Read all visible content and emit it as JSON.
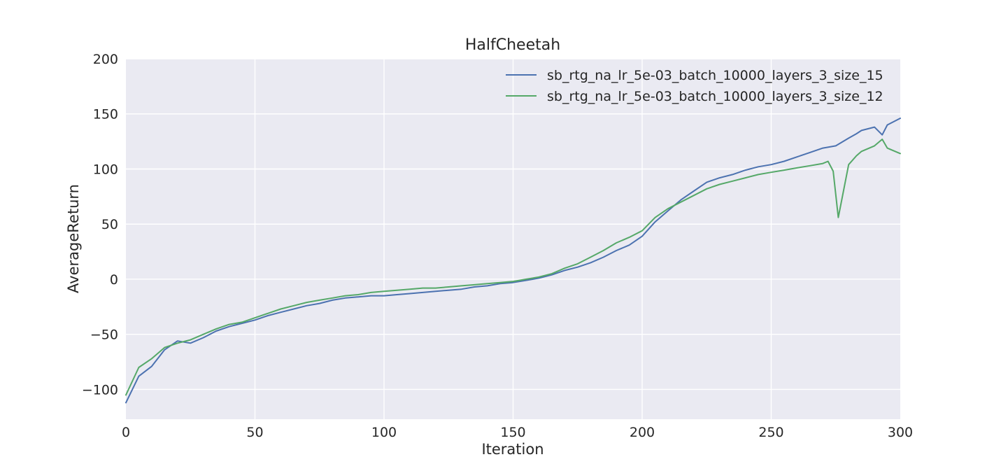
{
  "chart_data": {
    "type": "line",
    "title": "HalfCheetah",
    "xlabel": "Iteration",
    "ylabel": "AverageReturn",
    "xlim": [
      0,
      300
    ],
    "ylim": [
      -127,
      200
    ],
    "xticks": [
      0,
      50,
      100,
      150,
      200,
      250,
      300
    ],
    "yticks": [
      -100,
      -50,
      0,
      50,
      100,
      150,
      200
    ],
    "ytick_labels": [
      "−100",
      "−50",
      "0",
      "50",
      "100",
      "150",
      "200"
    ],
    "grid": true,
    "style": "seaborn",
    "legend_position": "top-right",
    "series": [
      {
        "name": "sb_rtg_na_lr_5e-03_batch_10000_layers_3_size_15",
        "color": "#4c72b0",
        "x": [
          0,
          5,
          10,
          15,
          20,
          25,
          30,
          35,
          40,
          45,
          50,
          55,
          60,
          65,
          70,
          75,
          80,
          85,
          90,
          95,
          100,
          105,
          110,
          115,
          120,
          125,
          130,
          135,
          140,
          145,
          150,
          155,
          160,
          165,
          170,
          175,
          180,
          185,
          190,
          195,
          200,
          205,
          210,
          215,
          220,
          225,
          230,
          235,
          240,
          245,
          250,
          255,
          260,
          265,
          270,
          275,
          280,
          283,
          285,
          290,
          293,
          295,
          300
        ],
        "y": [
          -112,
          -88,
          -79,
          -64,
          -56,
          -58,
          -53,
          -47,
          -43,
          -40,
          -37,
          -33,
          -30,
          -27,
          -24,
          -22,
          -19,
          -17,
          -16,
          -15,
          -15,
          -14,
          -13,
          -12,
          -11,
          -10,
          -9,
          -7,
          -6,
          -4,
          -3,
          -1,
          1,
          4,
          8,
          11,
          15,
          20,
          26,
          31,
          39,
          52,
          62,
          72,
          80,
          88,
          92,
          95,
          99,
          102,
          104,
          107,
          111,
          115,
          119,
          121,
          128,
          132,
          135,
          138,
          131,
          140,
          146
        ]
      },
      {
        "name": "sb_rtg_na_lr_5e-03_batch_10000_layers_3_size_12",
        "color": "#55a868",
        "x": [
          0,
          5,
          10,
          15,
          20,
          25,
          30,
          35,
          40,
          45,
          50,
          55,
          60,
          65,
          70,
          75,
          80,
          85,
          90,
          95,
          100,
          105,
          110,
          115,
          120,
          125,
          130,
          135,
          140,
          145,
          150,
          155,
          160,
          165,
          170,
          175,
          180,
          185,
          190,
          195,
          200,
          205,
          210,
          215,
          220,
          225,
          230,
          235,
          240,
          245,
          250,
          255,
          260,
          265,
          270,
          272,
          274,
          276,
          278,
          280,
          283,
          285,
          290,
          293,
          295,
          300
        ],
        "y": [
          -105,
          -80,
          -72,
          -62,
          -58,
          -55,
          -50,
          -45,
          -41,
          -39,
          -35,
          -31,
          -27,
          -24,
          -21,
          -19,
          -17,
          -15,
          -14,
          -12,
          -11,
          -10,
          -9,
          -8,
          -8,
          -7,
          -6,
          -5,
          -4,
          -3,
          -2,
          0,
          2,
          5,
          10,
          14,
          20,
          26,
          33,
          38,
          44,
          56,
          64,
          70,
          76,
          82,
          86,
          89,
          92,
          95,
          97,
          99,
          101,
          103,
          105,
          107,
          98,
          56,
          80,
          104,
          112,
          116,
          121,
          127,
          119,
          114
        ]
      }
    ]
  }
}
